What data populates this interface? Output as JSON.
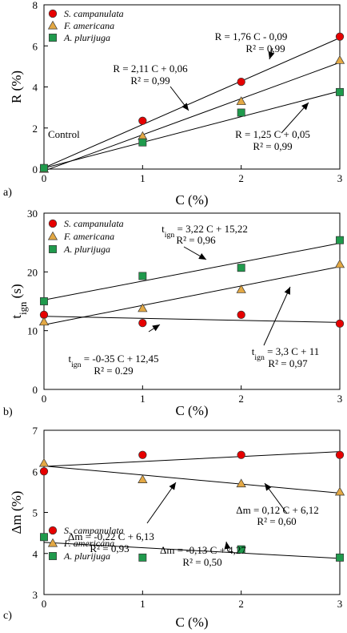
{
  "series_styles": [
    {
      "name": "S. campanulata",
      "marker": "circle",
      "color": "#e60000"
    },
    {
      "name": "F. americana",
      "marker": "triangle",
      "color": "#e3a844"
    },
    {
      "name": "A. plurijuga",
      "marker": "square",
      "color": "#1f9a4c"
    }
  ],
  "chart_data": [
    {
      "type": "scatter",
      "panel_label": "a)",
      "xlabel": "C  (%)",
      "ylabel": "R  (%)",
      "xlim": [
        0,
        3
      ],
      "ylim": [
        0,
        8
      ],
      "xticks": [
        0,
        1,
        2,
        3
      ],
      "yticks": [
        0,
        2,
        4,
        6,
        8
      ],
      "legend": [
        "S. campanulata",
        "F. americana",
        "A. plurijuga"
      ],
      "note": "Control",
      "x": [
        0,
        1,
        2,
        3
      ],
      "series": [
        {
          "name": "S. campanulata",
          "values": [
            0.05,
            2.35,
            4.25,
            6.45
          ]
        },
        {
          "name": "F. americana",
          "values": [
            0.0,
            1.6,
            3.3,
            5.3
          ]
        },
        {
          "name": "A. plurijuga",
          "values": [
            0.05,
            1.3,
            2.75,
            3.75
          ]
        }
      ],
      "fits": [
        {
          "slope": 1.76,
          "intercept": -0.09,
          "eq": "R = 1,76 C - 0,09",
          "r2": "R² = 0,99"
        },
        {
          "slope": 2.11,
          "intercept": 0.06,
          "eq": "R = 2,11 C + 0,06",
          "r2": "R² = 0,99"
        },
        {
          "slope": 1.25,
          "intercept": 0.05,
          "eq": "R = 1,25 C + 0,05",
          "r2": "R² = 0,99"
        }
      ]
    },
    {
      "type": "scatter",
      "panel_label": "b)",
      "xlabel": "C  (%)",
      "ylabel": "t_ign  (s)",
      "xlim": [
        0,
        3
      ],
      "ylim": [
        0,
        30
      ],
      "xticks": [
        0,
        1,
        2,
        3
      ],
      "yticks": [
        0,
        10,
        20,
        30
      ],
      "legend": [
        "S. campanulata",
        "F. americana",
        "A. plurijuga"
      ],
      "x": [
        0,
        1,
        2,
        3
      ],
      "series": [
        {
          "name": "S. campanulata",
          "values": [
            12.7,
            11.3,
            12.7,
            11.2
          ]
        },
        {
          "name": "F. americana",
          "values": [
            11.5,
            13.8,
            17.0,
            21.3
          ]
        },
        {
          "name": "A. plurijuga",
          "values": [
            15.0,
            19.3,
            20.7,
            25.4
          ]
        }
      ],
      "fits": [
        {
          "slope": 3.22,
          "intercept": 15.22,
          "eq": "t_ign = 3,22 C + 15,22",
          "r2": "R² = 0,96"
        },
        {
          "slope": -0.35,
          "intercept": 12.45,
          "eq": "t_ign = -0-35 C + 12,45",
          "r2": "R² = 0.29"
        },
        {
          "slope": 3.3,
          "intercept": 11,
          "eq": "t_ign = 3,3 C + 11",
          "r2": "R² = 0,97"
        }
      ]
    },
    {
      "type": "scatter",
      "panel_label": "c)",
      "xlabel": "C  (%)",
      "ylabel": "Δm  (%)",
      "xlim": [
        0,
        3
      ],
      "ylim": [
        3,
        7
      ],
      "xticks": [
        0,
        1,
        2,
        3
      ],
      "yticks": [
        3,
        4,
        5,
        6,
        7
      ],
      "legend": [
        "S. campanulata",
        "F. americana",
        "A. plurijuga"
      ],
      "x": [
        0,
        1,
        2,
        3
      ],
      "series": [
        {
          "name": "S. campanulata",
          "values": [
            6.0,
            6.4,
            6.4,
            6.4
          ]
        },
        {
          "name": "F. americana",
          "values": [
            6.2,
            5.8,
            5.7,
            5.5
          ]
        },
        {
          "name": "A. plurijuga",
          "values": [
            4.4,
            3.9,
            4.1,
            3.9
          ]
        }
      ],
      "fits": [
        {
          "slope": -0.22,
          "intercept": 6.13,
          "eq": "Δm = -0,22 C + 6,13",
          "r2": "R² = 0,93"
        },
        {
          "slope": 0.12,
          "intercept": 6.12,
          "eq": "Δm = 0,12 C + 6,12",
          "r2": "R² = 0,60"
        },
        {
          "slope": -0.13,
          "intercept": 4.27,
          "eq": "Δm = -0,13 C + 4,27",
          "r2": "R² = 0,50"
        }
      ]
    }
  ]
}
